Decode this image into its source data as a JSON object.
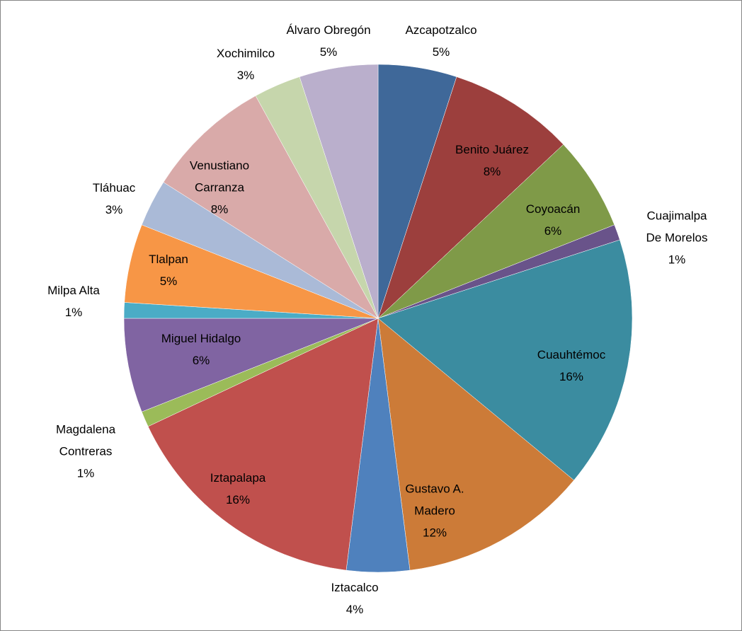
{
  "chart_data": {
    "type": "pie",
    "categories": [
      "Azcapotzalco",
      "Benito Juárez",
      "Coyoacán",
      "Cuajimalpa De Morelos",
      "Cuauhtémoc",
      "Gustavo A. Madero",
      "Iztacalco",
      "Iztapalapa",
      "Magdalena Contreras",
      "Miguel Hidalgo",
      "Milpa Alta",
      "Tlalpan",
      "Tláhuac",
      "Venustiano Carranza",
      "Xochimilco",
      "Álvaro Obregón"
    ],
    "values": [
      5,
      8,
      6,
      1,
      16,
      12,
      4,
      16,
      1,
      6,
      1,
      5,
      3,
      8,
      3,
      5
    ],
    "value_labels": [
      "5%",
      "8%",
      "6%",
      "1%",
      "16%",
      "12%",
      "4%",
      "16%",
      "1%",
      "6%",
      "1%",
      "5%",
      "3%",
      "8%",
      "3%",
      "5%"
    ],
    "colors": [
      "#3f6899",
      "#9c3f3d",
      "#7f9a48",
      "#69538a",
      "#3b8ca0",
      "#cc7b38",
      "#4f81bd",
      "#c0504d",
      "#9bbb59",
      "#8064a2",
      "#4bacc6",
      "#f79646",
      "#aabad7",
      "#d9aaa9",
      "#c6d6ac",
      "#baafcc"
    ]
  }
}
